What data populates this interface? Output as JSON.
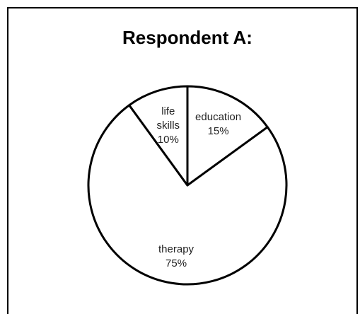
{
  "chart_data": {
    "type": "pie",
    "title": "Respondent A:",
    "categories": [
      "education",
      "therapy",
      "life skills"
    ],
    "values": [
      15,
      75,
      10
    ],
    "value_labels": [
      "15%",
      "75%",
      "10%"
    ],
    "colors": [
      "#ffffff",
      "#ffffff",
      "#ffffff"
    ]
  }
}
